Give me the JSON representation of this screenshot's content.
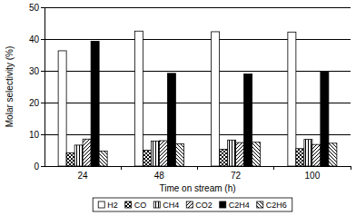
{
  "chart_data": {
    "type": "bar",
    "x_label": "Time on stream (h)",
    "y_label": "Molar selectivity (%)",
    "categories": [
      "24",
      "48",
      "72",
      "100"
    ],
    "series": [
      {
        "name": "H2",
        "color": "#ffffff",
        "values": [
          36.3,
          42.5,
          42.3,
          42.2
        ]
      },
      {
        "name": "CO",
        "color": "#000000",
        "values": [
          4.2,
          5.0,
          5.3,
          5.5
        ]
      },
      {
        "name": "CH4",
        "color": "#000000",
        "values": [
          6.6,
          7.9,
          8.2,
          8.4
        ]
      },
      {
        "name": "CO2",
        "color": "#000000",
        "values": [
          8.5,
          8.0,
          7.4,
          6.8
        ]
      },
      {
        "name": "C2H4",
        "color": "#000000",
        "values": [
          39.3,
          29.2,
          29.0,
          29.7
        ]
      },
      {
        "name": "C2H6",
        "color": "#000000",
        "values": [
          4.7,
          7.0,
          7.5,
          7.2
        ]
      }
    ],
    "ylim": [
      0,
      50
    ],
    "yticks": [
      0,
      10,
      20,
      30,
      40,
      50
    ],
    "grid": true,
    "legend": "bottom"
  }
}
